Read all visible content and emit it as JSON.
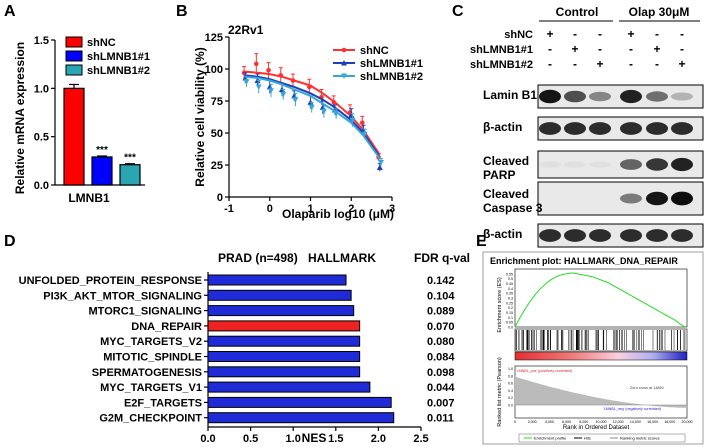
{
  "panels": {
    "A": {
      "letter": "A",
      "chart_data": {
        "type": "bar",
        "categories": [
          "LMNB1"
        ],
        "series": [
          {
            "name": "shNC",
            "values": [
              1.0
            ],
            "err": [
              0.04
            ],
            "color": "#ff0000",
            "sig": ""
          },
          {
            "name": "shLMNB1#1",
            "values": [
              0.29
            ],
            "err": [
              0.01
            ],
            "color": "#0000ff",
            "sig": "***"
          },
          {
            "name": "shLMNB1#2",
            "values": [
              0.21
            ],
            "err": [
              0.01
            ],
            "color": "#2aa6b3",
            "sig": "***"
          }
        ],
        "ylabel": "Relative mRNA expression",
        "xlabel": "LMNB1",
        "ylim": [
          0,
          1.5
        ],
        "yticks": [
          "0.0",
          "0.5",
          "1.0",
          "1.5"
        ],
        "legend": "top-left"
      }
    },
    "B": {
      "letter": "B",
      "chart_data": {
        "type": "line",
        "title": "22Rv1",
        "xlabel": "Olaparib log10 (μM)",
        "ylabel": "Relative cell viability (%)",
        "xlim": [
          -1,
          3
        ],
        "ylim": [
          0,
          125
        ],
        "xticks": [
          "-1",
          "0",
          "1",
          "2",
          "3"
        ],
        "yticks": [
          "0",
          "25",
          "50",
          "75",
          "100",
          "125"
        ],
        "series": [
          {
            "name": "shNC",
            "color": "#ff3030",
            "marker": "circle",
            "x": [
              -0.6,
              -0.3,
              0.0,
              0.3,
              0.6,
              1.0,
              1.3,
              1.6,
              2.0,
              2.3,
              2.7
            ],
            "y": [
              97,
              104,
              99,
              95,
              91,
              86,
              78,
              74,
              66,
              58,
              31
            ],
            "err": [
              5,
              8,
              6,
              6,
              5,
              6,
              6,
              5,
              6,
              5,
              3
            ],
            "fit": [
              98,
              97,
              96,
              94,
              91,
              87,
              81,
              74,
              63,
              52,
              33
            ]
          },
          {
            "name": "shLMNB1#1",
            "color": "#1d3fb8",
            "marker": "triangle",
            "x": [
              -0.6,
              -0.3,
              0.0,
              0.3,
              0.6,
              1.0,
              1.3,
              1.6,
              2.0,
              2.3,
              2.7
            ],
            "y": [
              93,
              91,
              86,
              84,
              79,
              74,
              70,
              68,
              64,
              52,
              23
            ],
            "err": [
              4,
              5,
              5,
              5,
              4,
              5,
              5,
              4,
              5,
              4,
              3
            ],
            "fit": [
              95,
              94,
              92,
              89,
              86,
              81,
              76,
              70,
              60,
              50,
              31
            ]
          },
          {
            "name": "shLMNB1#2",
            "color": "#35a7d8",
            "marker": "triangle-down",
            "x": [
              -0.6,
              -0.3,
              0.0,
              0.3,
              0.6,
              1.0,
              1.3,
              1.6,
              2.0,
              2.3,
              2.7
            ],
            "y": [
              90,
              86,
              83,
              80,
              76,
              70,
              67,
              65,
              60,
              49,
              27
            ],
            "err": [
              4,
              5,
              5,
              4,
              5,
              4,
              5,
              4,
              5,
              4,
              3
            ],
            "fit": [
              94,
              93,
              91,
              88,
              84,
              79,
              73,
              67,
              58,
              48,
              30
            ]
          }
        ],
        "legend": "top-right"
      }
    },
    "C": {
      "letter": "C",
      "groups": [
        "Control",
        "Olap 30μM"
      ],
      "row_labels": [
        "shNC",
        "shLMNB1#1",
        "shLMNB1#2"
      ],
      "signs": [
        [
          "+",
          "-",
          "-",
          "+",
          "-",
          "-"
        ],
        [
          "-",
          "+",
          "-",
          "-",
          "+",
          "-"
        ],
        [
          "-",
          "-",
          "+",
          "-",
          "-",
          "+"
        ]
      ],
      "blots": [
        {
          "label": "Lamin B1",
          "intensity": [
            0.95,
            0.7,
            0.45,
            0.9,
            0.55,
            0.25
          ]
        },
        {
          "label": "β-actin",
          "intensity": [
            0.85,
            0.85,
            0.85,
            0.85,
            0.85,
            0.85
          ]
        },
        {
          "label": "Cleaved\nPARP",
          "intensity": [
            0.05,
            0.05,
            0.05,
            0.6,
            0.8,
            0.9
          ]
        },
        {
          "label": "Cleaved\nCaspase 3",
          "intensity": [
            0.0,
            0.0,
            0.0,
            0.5,
            0.95,
            0.98
          ]
        },
        {
          "label": "β-actin",
          "intensity": [
            0.85,
            0.85,
            0.85,
            0.85,
            0.85,
            0.85
          ]
        }
      ]
    },
    "D": {
      "letter": "D",
      "header_left": "PRAD (n=498)",
      "header_mid": "HALLMARK",
      "header_right": "FDR q-val",
      "chart_data": {
        "type": "bar",
        "orientation": "horizontal",
        "categories": [
          "UNFOLDED_PROTEIN_RESPONSE",
          "PI3K_AKT_MTOR_SIGNALING",
          "MTORC1_SIGNALING",
          "DNA_REPAIR",
          "MYC_TARGETS_V2",
          "MITOTIC_SPINDLE",
          "SPERMATOGENESIS",
          "MYC_TARGETS_V1",
          "E2F_TARGETS",
          "G2M_CHECKPOINT"
        ],
        "values": [
          1.62,
          1.68,
          1.71,
          1.78,
          1.78,
          1.78,
          1.78,
          1.9,
          2.15,
          2.18
        ],
        "fdr": [
          "0.142",
          "0.104",
          "0.089",
          "0.070",
          "0.080",
          "0.084",
          "0.098",
          "0.044",
          "0.007",
          "0.011"
        ],
        "highlight": "DNA_REPAIR",
        "bar_color": "#1f2bd6",
        "highlight_color": "#ee2222",
        "xlabel": "NES",
        "xlim": [
          0,
          2.5
        ],
        "xticks": [
          "0.0",
          "0.5",
          "1.0",
          "1.5",
          "2.0",
          "2.5"
        ]
      }
    },
    "E": {
      "letter": "E",
      "title": "Enrichment plot: HALLMARK_DNA_REPAIR",
      "es_ylabel": "Enrichment score (ES)",
      "es_yticks": [
        "0.55",
        "0.5",
        "0.45",
        "0.4",
        "0.35",
        "0.3",
        "0.25",
        "0.2",
        "0.15",
        "0.1",
        "0.05",
        "0.0"
      ],
      "rank_ylabel": "Ranked list metric (Pearson)",
      "rank_yticks": [
        "1.0",
        "0.8",
        "0.6",
        "0.4",
        "0.2",
        "0.0"
      ],
      "xlabel": "Rank in Ordered Dataset",
      "xticks": [
        "0",
        "2,000",
        "4,000",
        "6,000",
        "8,000",
        "10,000",
        "12,000",
        "14,000",
        "16,000",
        "18,000",
        "20,000"
      ],
      "pos_label": "'LMNB1_pos' (positively correlated)",
      "neg_label": "'LMNB1_neg' (negatively correlated)",
      "zero_cross": "Zero cross at 14850",
      "legend": [
        "Enrichment profile",
        "Hits",
        "Ranking metric scores"
      ],
      "chart_data": {
        "type": "line",
        "x": [
          0,
          600,
          1200,
          1800,
          2400,
          3000,
          3600,
          4200,
          4800,
          5400,
          6000,
          6600,
          7200,
          7800,
          8400,
          9000,
          9600,
          10200,
          10800,
          11400,
          12000,
          12600,
          13200,
          13800,
          14400,
          15000,
          15600,
          16200,
          16800,
          17400,
          18000,
          18600,
          19200,
          19800
        ],
        "y": [
          0.0,
          0.1,
          0.19,
          0.27,
          0.34,
          0.4,
          0.45,
          0.49,
          0.52,
          0.54,
          0.55,
          0.56,
          0.55,
          0.54,
          0.53,
          0.52,
          0.5,
          0.48,
          0.46,
          0.43,
          0.4,
          0.37,
          0.34,
          0.31,
          0.28,
          0.25,
          0.22,
          0.19,
          0.16,
          0.13,
          0.1,
          0.07,
          0.03,
          0.0
        ],
        "xlim": [
          0,
          20000
        ],
        "ylim": [
          0,
          0.6
        ],
        "color": "#22dd22"
      }
    }
  }
}
